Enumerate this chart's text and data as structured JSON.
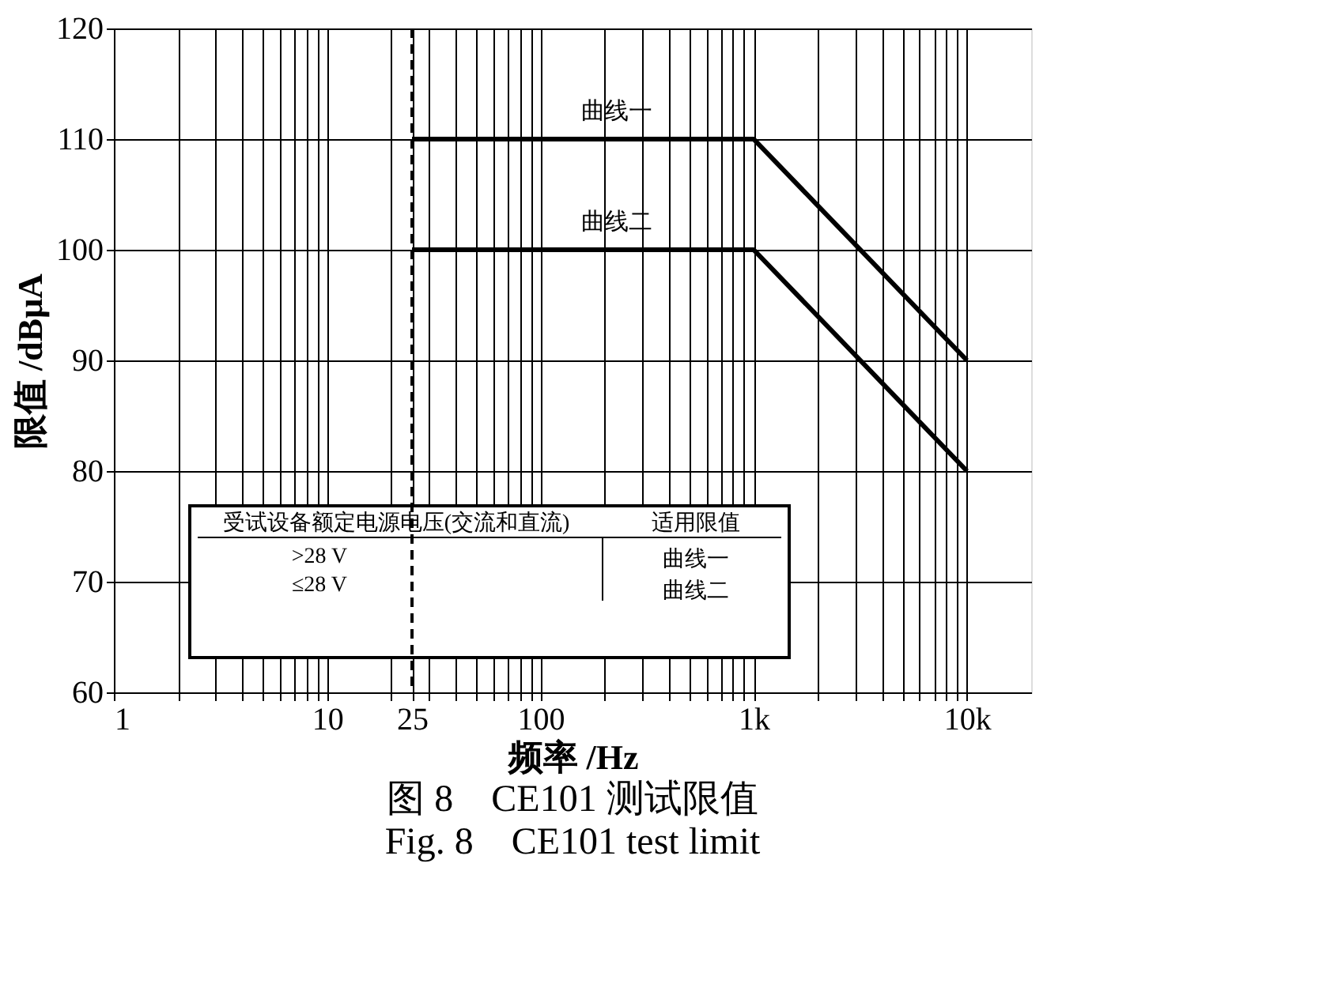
{
  "chart_data": {
    "type": "line",
    "title": "图 8　CE101 测试限值",
    "subtitle": "Fig. 8　CE101 test limit",
    "xlabel": "频率 /Hz",
    "ylabel": "限值 /dBμA",
    "log": "x",
    "xlim": [
      1,
      20000
    ],
    "ylim": [
      60,
      120
    ],
    "xticks": [
      1,
      {
        "value": 2,
        "label": null
      },
      {
        "value": 3,
        "label": null
      },
      {
        "value": 4,
        "label": null
      },
      {
        "value": 5,
        "label": null
      },
      {
        "value": 6,
        "label": null
      },
      {
        "value": 7,
        "label": null
      },
      {
        "value": 8,
        "label": null
      },
      {
        "value": 9,
        "label": null
      },
      10,
      {
        "value": 20,
        "label": null
      },
      25,
      {
        "value": 30,
        "label": null
      },
      {
        "value": 40,
        "label": null
      },
      {
        "value": 50,
        "label": null
      },
      {
        "value": 60,
        "label": null
      },
      {
        "value": 70,
        "label": null
      },
      {
        "value": 80,
        "label": null
      },
      {
        "value": 90,
        "label": null
      },
      100,
      {
        "value": 200,
        "label": null
      },
      {
        "value": 300,
        "label": null
      },
      {
        "value": 400,
        "label": null
      },
      {
        "value": 500,
        "label": null
      },
      {
        "value": 600,
        "label": null
      },
      {
        "value": 700,
        "label": null
      },
      {
        "value": 800,
        "label": null
      },
      {
        "value": 900,
        "label": null
      },
      {
        "value": 1000,
        "label": "1k"
      },
      {
        "value": 2000,
        "label": null
      },
      {
        "value": 3000,
        "label": null
      },
      {
        "value": 4000,
        "label": null
      },
      {
        "value": 5000,
        "label": null
      },
      {
        "value": 6000,
        "label": null
      },
      {
        "value": 7000,
        "label": null
      },
      {
        "value": 8000,
        "label": null
      },
      {
        "value": 9000,
        "label": null
      },
      {
        "value": 10000,
        "label": "10k"
      }
    ],
    "yticks": [
      60,
      70,
      80,
      90,
      100,
      110,
      120
    ],
    "grid": true,
    "line_style": "solid",
    "series": [
      {
        "name": "曲线一",
        "color": "#000000",
        "x": [
          25,
          1000,
          10000
        ],
        "values": [
          110,
          110,
          90
        ]
      },
      {
        "name": "曲线二",
        "color": "#000000",
        "x": [
          25,
          1000,
          10000
        ],
        "values": [
          100,
          100,
          80
        ]
      }
    ],
    "ref_lines": [
      {
        "axis": "x",
        "value": 25,
        "color": "#000000",
        "line_style": "dashed"
      }
    ],
    "annotations": [
      "受试设备额定电源电压(交流和直流)",
      "适用限值",
      ">28 V",
      "≤28 V",
      "曲线一",
      "曲线二"
    ]
  }
}
